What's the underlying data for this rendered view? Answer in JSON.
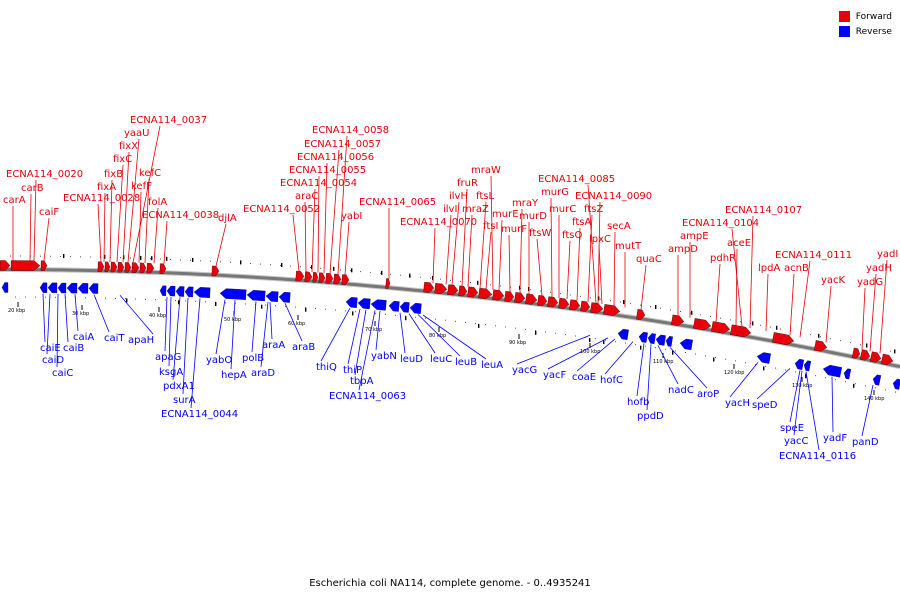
{
  "legend": {
    "forward_label": "Forward",
    "reverse_label": "Reverse",
    "forward_color": "#e8000b",
    "reverse_color": "#0000ff"
  },
  "colors": {
    "backbone": "#777777",
    "forward": "#e8000b",
    "reverse": "#0000ff"
  },
  "caption": "Escherichia coli NA114, complete genome. - 0..4935241",
  "ticks": [
    "20 kbp",
    "30 kbp",
    "40 kbp",
    "50 kbp",
    "60 kbp",
    "70 kbp",
    "80 kbp",
    "90 kbp",
    "100 kbp",
    "110 kbp",
    "120 kbp",
    "130 kbp",
    "140 kbp"
  ],
  "forward_labels": [
    "carA",
    "carB",
    "caiF",
    "ECNA114_0020",
    "fixA",
    "fixB",
    "fixC",
    "fixX",
    "yaaU",
    "ECNA114_0037",
    "kefF",
    "kefC",
    "folA",
    "ECNA114_0028",
    "ECNA114_0038",
    "djlA",
    "ECNA114_0052",
    "araC",
    "ECNA114_0054",
    "ECNA114_0055",
    "ECNA114_0056",
    "ECNA114_0057",
    "ECNA114_0058",
    "yabI",
    "ECNA114_0065",
    "ECNA114_0070",
    "ilvI",
    "ilvH",
    "fruR",
    "mraZ",
    "ftsL",
    "mraW",
    "ftsI",
    "murE",
    "murF",
    "mraY",
    "murD",
    "ftsW",
    "murG",
    "murC",
    "ftsQ",
    "ftsA",
    "ftsZ",
    "ECNA114_0085",
    "ECNA114_0090",
    "lpxC",
    "secA",
    "mutT",
    "quaC",
    "ampD",
    "ampE",
    "pdhR",
    "aceE",
    "ECNA114_0104",
    "ECNA114_0107",
    "lpdA",
    "acnB",
    "ECNA114_0111",
    "yacK",
    "yadG",
    "yadH",
    "yadI"
  ],
  "reverse_labels": [
    "caiE",
    "caiD",
    "caiC",
    "caiB",
    "caiA",
    "caiT",
    "apaH",
    "apaG",
    "ksgA",
    "pdxA1",
    "surA",
    "ECNA114_0044",
    "yabO",
    "hepA",
    "polB",
    "araD",
    "araA",
    "araB",
    "thiQ",
    "thiP",
    "tbpA",
    "ECNA114_0063",
    "yabN",
    "leuD",
    "leuC",
    "leuB",
    "leuA",
    "yacG",
    "yacF",
    "coaE",
    "hofC",
    "hofb",
    "ppdD",
    "nadC",
    "aroP",
    "yacH",
    "speD",
    "speE",
    "yacC",
    "ECNA114_0116",
    "yadF",
    "panD"
  ]
}
